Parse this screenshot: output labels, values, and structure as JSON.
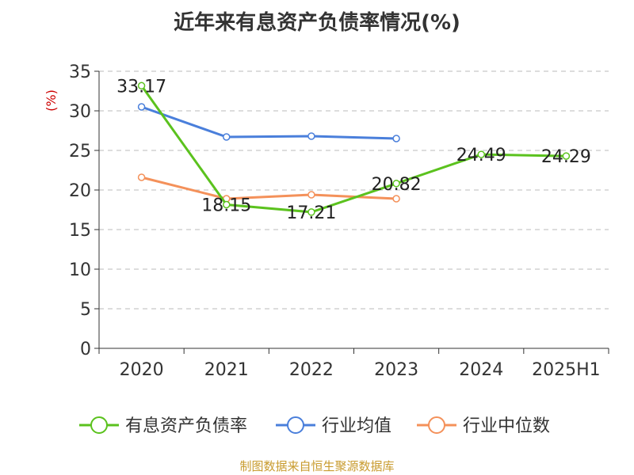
{
  "title": "近年来有息资产负债率情况(%)",
  "source": "制图数据来自恒生聚源数据库",
  "chart_data": {
    "type": "line",
    "title": "近年来有息资产负债率情况(%)",
    "ylabel": "(%)",
    "ylim": [
      0,
      35
    ],
    "y_ticks": [
      0,
      5,
      10,
      15,
      20,
      25,
      30,
      35
    ],
    "grid": true,
    "legend_position": "bottom",
    "categories": [
      "2020",
      "2021",
      "2022",
      "2023",
      "2024",
      "2025H1"
    ],
    "series": [
      {
        "name": "有息资产负债率",
        "color": "#5bc21e",
        "values": [
          33.17,
          18.15,
          17.21,
          20.82,
          24.49,
          24.29
        ],
        "labels": [
          "33.17",
          "18.15",
          "17.21",
          "20.82",
          "24.49",
          "24.29"
        ]
      },
      {
        "name": "行业均值",
        "color": "#4a7fdb",
        "values": [
          30.5,
          26.7,
          26.8,
          26.5,
          null,
          null
        ]
      },
      {
        "name": "行业中位数",
        "color": "#f4915a",
        "values": [
          21.6,
          18.9,
          19.4,
          18.9,
          null,
          null
        ]
      }
    ]
  }
}
